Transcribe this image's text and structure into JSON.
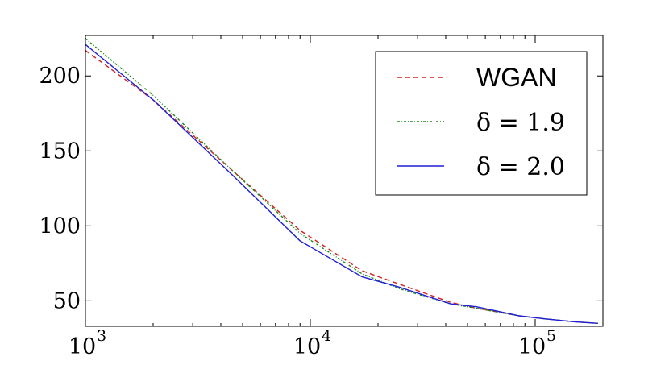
{
  "chart_data": {
    "type": "line",
    "title": "",
    "xlabel": "",
    "ylabel": "",
    "x_scale": "log",
    "xlim": [
      1000,
      200000
    ],
    "ylim": [
      33,
      227
    ],
    "xticks": [
      {
        "value": 1000,
        "base": "10",
        "exp": "3"
      },
      {
        "value": 10000,
        "base": "10",
        "exp": "4"
      },
      {
        "value": 100000,
        "base": "10",
        "exp": "5"
      }
    ],
    "yticks": [
      {
        "value": 50,
        "label": "50"
      },
      {
        "value": 100,
        "label": "100"
      },
      {
        "value": 150,
        "label": "150"
      },
      {
        "value": 200,
        "label": "200"
      }
    ],
    "grid": false,
    "legend_position": "top-right",
    "series": [
      {
        "name": "WGAN",
        "legend_style": "sans",
        "color": "#d62020",
        "dash": "6,4",
        "x": [
          1000,
          2000,
          4500,
          9000,
          17000,
          25000,
          42000,
          55000,
          85000,
          110000,
          150000,
          190000
        ],
        "y": [
          217,
          184,
          137,
          97,
          70,
          61,
          49,
          45,
          40,
          38,
          36,
          35
        ]
      },
      {
        "name": "δ = 1.9",
        "legend_style": "serif",
        "color": "#1a8a1a",
        "dash": "3,2,1,2",
        "x": [
          1000,
          2000,
          4500,
          9000,
          17000,
          25000,
          42000,
          55000,
          85000,
          110000,
          150000,
          190000
        ],
        "y": [
          225,
          187,
          137,
          95,
          68,
          58,
          48,
          45,
          40,
          38,
          36,
          35
        ]
      },
      {
        "name": "δ = 2.0",
        "legend_style": "serif",
        "color": "#1f1fd6",
        "dash": "",
        "x": [
          1000,
          2000,
          4500,
          9000,
          17000,
          25000,
          42000,
          55000,
          85000,
          110000,
          150000,
          190000
        ],
        "y": [
          221,
          184,
          134,
          90,
          66,
          59,
          48,
          46,
          40,
          38,
          36,
          35
        ]
      }
    ]
  }
}
